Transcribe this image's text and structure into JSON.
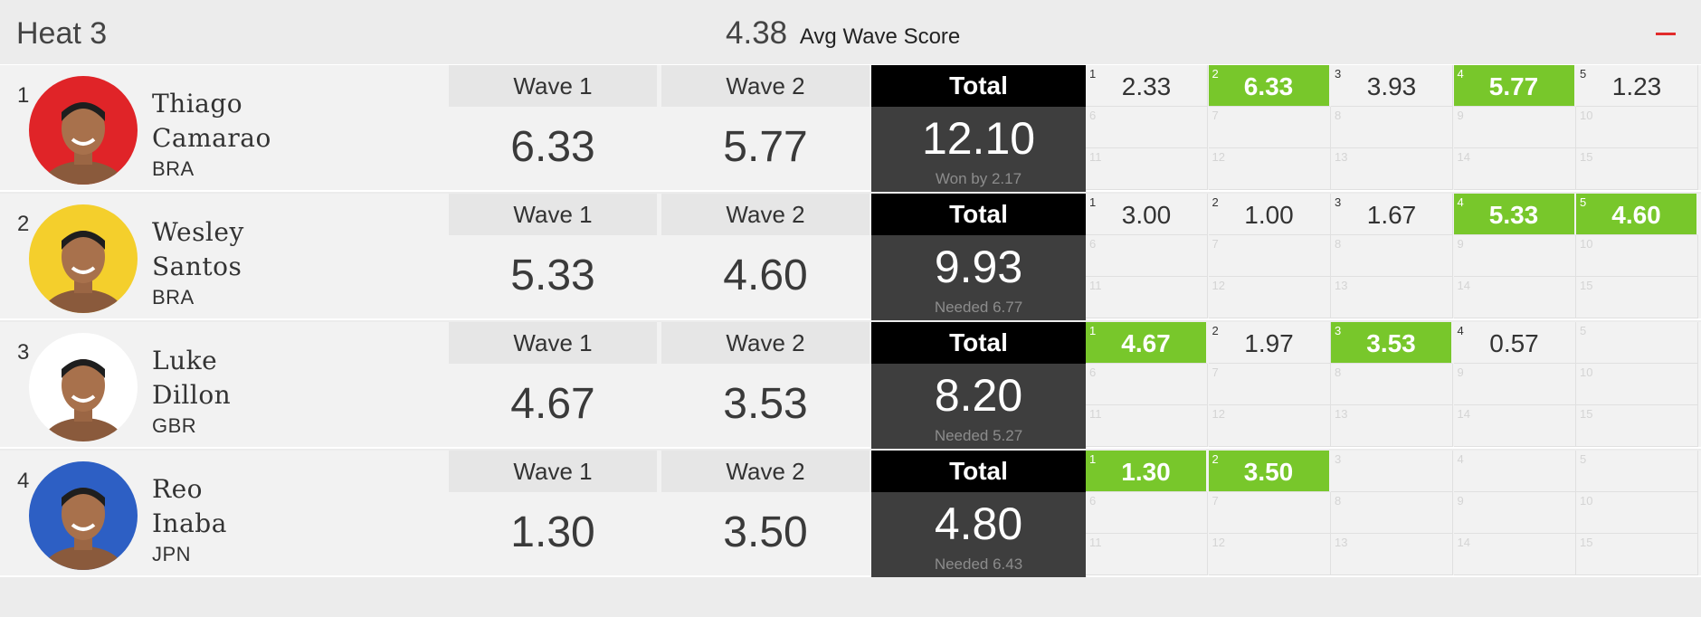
{
  "heat": {
    "title": "Heat 3",
    "avg_value": "4.38",
    "avg_label": "Avg Wave Score"
  },
  "labels": {
    "wave1": "Wave 1",
    "wave2": "Wave 2",
    "total": "Total"
  },
  "colors": {
    "counted_wave": "#78c72b",
    "total_header": "#000000",
    "total_body": "#3e3e3e",
    "collapse": "#e22b2b"
  },
  "athletes": [
    {
      "rank": "1",
      "first": "Thiago",
      "last": "Camarao",
      "country": "BRA",
      "wave1": "6.33",
      "wave2": "5.77",
      "total": "12.10",
      "note": "Won by 2.17",
      "avatar_color": "#e02428",
      "waves": [
        {
          "n": "1",
          "score": "2.33",
          "counted": false
        },
        {
          "n": "2",
          "score": "6.33",
          "counted": true
        },
        {
          "n": "3",
          "score": "3.93",
          "counted": false
        },
        {
          "n": "4",
          "score": "5.77",
          "counted": true
        },
        {
          "n": "5",
          "score": "1.23",
          "counted": false
        },
        {
          "n": "6",
          "score": ""
        },
        {
          "n": "7",
          "score": ""
        },
        {
          "n": "8",
          "score": ""
        },
        {
          "n": "9",
          "score": ""
        },
        {
          "n": "10",
          "score": ""
        },
        {
          "n": "11",
          "score": ""
        },
        {
          "n": "12",
          "score": ""
        },
        {
          "n": "13",
          "score": ""
        },
        {
          "n": "14",
          "score": ""
        },
        {
          "n": "15",
          "score": ""
        }
      ]
    },
    {
      "rank": "2",
      "first": "Wesley",
      "last": "Santos",
      "country": "BRA",
      "wave1": "5.33",
      "wave2": "4.60",
      "total": "9.93",
      "note": "Needed 6.77",
      "avatar_color": "#f4cf2c",
      "waves": [
        {
          "n": "1",
          "score": "3.00",
          "counted": false
        },
        {
          "n": "2",
          "score": "1.00",
          "counted": false
        },
        {
          "n": "3",
          "score": "1.67",
          "counted": false
        },
        {
          "n": "4",
          "score": "5.33",
          "counted": true
        },
        {
          "n": "5",
          "score": "4.60",
          "counted": true
        },
        {
          "n": "6",
          "score": ""
        },
        {
          "n": "7",
          "score": ""
        },
        {
          "n": "8",
          "score": ""
        },
        {
          "n": "9",
          "score": ""
        },
        {
          "n": "10",
          "score": ""
        },
        {
          "n": "11",
          "score": ""
        },
        {
          "n": "12",
          "score": ""
        },
        {
          "n": "13",
          "score": ""
        },
        {
          "n": "14",
          "score": ""
        },
        {
          "n": "15",
          "score": ""
        }
      ]
    },
    {
      "rank": "3",
      "first": "Luke",
      "last": "Dillon",
      "country": "GBR",
      "wave1": "4.67",
      "wave2": "3.53",
      "total": "8.20",
      "note": "Needed 5.27",
      "avatar_color": "#ffffff",
      "waves": [
        {
          "n": "1",
          "score": "4.67",
          "counted": true
        },
        {
          "n": "2",
          "score": "1.97",
          "counted": false
        },
        {
          "n": "3",
          "score": "3.53",
          "counted": true
        },
        {
          "n": "4",
          "score": "0.57",
          "counted": false
        },
        {
          "n": "5",
          "score": ""
        },
        {
          "n": "6",
          "score": ""
        },
        {
          "n": "7",
          "score": ""
        },
        {
          "n": "8",
          "score": ""
        },
        {
          "n": "9",
          "score": ""
        },
        {
          "n": "10",
          "score": ""
        },
        {
          "n": "11",
          "score": ""
        },
        {
          "n": "12",
          "score": ""
        },
        {
          "n": "13",
          "score": ""
        },
        {
          "n": "14",
          "score": ""
        },
        {
          "n": "15",
          "score": ""
        }
      ]
    },
    {
      "rank": "4",
      "first": "Reo",
      "last": "Inaba",
      "country": "JPN",
      "wave1": "1.30",
      "wave2": "3.50",
      "total": "4.80",
      "note": "Needed 6.43",
      "avatar_color": "#2d5fc4",
      "waves": [
        {
          "n": "1",
          "score": "1.30",
          "counted": true
        },
        {
          "n": "2",
          "score": "3.50",
          "counted": true
        },
        {
          "n": "3",
          "score": ""
        },
        {
          "n": "4",
          "score": ""
        },
        {
          "n": "5",
          "score": ""
        },
        {
          "n": "6",
          "score": ""
        },
        {
          "n": "7",
          "score": ""
        },
        {
          "n": "8",
          "score": ""
        },
        {
          "n": "9",
          "score": ""
        },
        {
          "n": "10",
          "score": ""
        },
        {
          "n": "11",
          "score": ""
        },
        {
          "n": "12",
          "score": ""
        },
        {
          "n": "13",
          "score": ""
        },
        {
          "n": "14",
          "score": ""
        },
        {
          "n": "15",
          "score": ""
        }
      ]
    }
  ]
}
